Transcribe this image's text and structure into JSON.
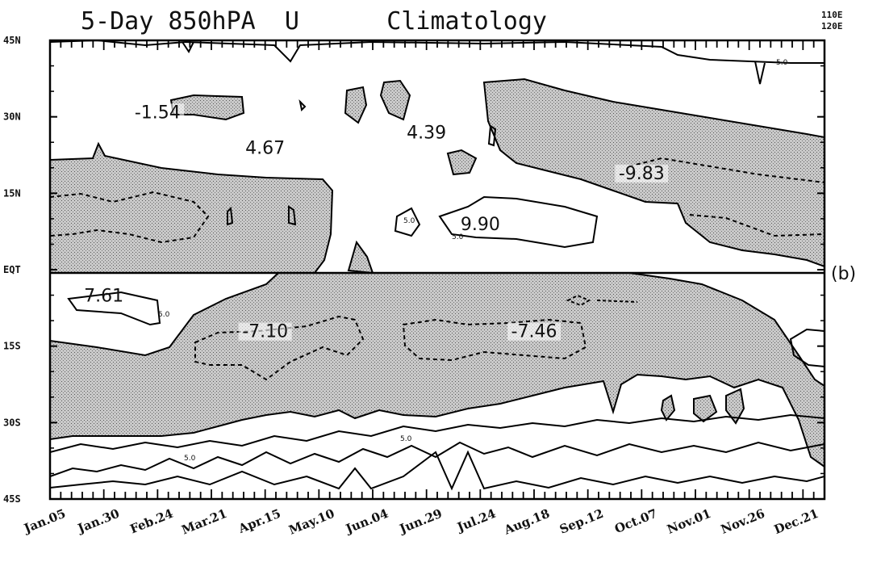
{
  "chart_data": {
    "type": "contour",
    "title": "5-Day 850hPA  U      Climatology",
    "corner_label": [
      "110E",
      "120E"
    ],
    "panel_label": "(b)",
    "y_axis": {
      "ticks": [
        {
          "value": 45,
          "label": "45N"
        },
        {
          "value": 30,
          "label": "30N"
        },
        {
          "value": 15,
          "label": "15N"
        },
        {
          "value": 0,
          "label": "EQT"
        },
        {
          "value": -15,
          "label": "15S"
        },
        {
          "value": -30,
          "label": "30S"
        },
        {
          "value": -45,
          "label": "45S"
        }
      ],
      "range": [
        -45,
        45
      ]
    },
    "x_axis": {
      "ticks": [
        "Jan.05",
        "Jan.30",
        "Feb.24",
        "Mar.21",
        "Apr.15",
        "May.10",
        "Jun.04",
        "Jun.29",
        "Jul.24",
        "Aug.18",
        "Sep.12",
        "Oct.07",
        "Nov.01",
        "Nov.26",
        "Dec.21"
      ],
      "pentads_per_label": 5,
      "pentad_count": 73
    },
    "value_labels": [
      {
        "text": "-1.54",
        "date": "Feb.24",
        "lat": 31
      },
      {
        "text": "4.67",
        "date": "Apr.15",
        "lat": 24
      },
      {
        "text": "4.39",
        "date": "Jun.29",
        "lat": 27
      },
      {
        "text": "-9.83",
        "date": "Oct.07",
        "lat": 19
      },
      {
        "text": "9.90",
        "date": "Jul.24",
        "lat": 9
      },
      {
        "text": "7.61",
        "date": "Jan.30",
        "lat": -5
      },
      {
        "text": "-7.10",
        "date": "Apr.15",
        "lat": -12
      },
      {
        "text": "-7.46",
        "date": "Aug.18",
        "lat": -12
      }
    ],
    "contour_labels": [
      "5.0",
      "5.0",
      "5.0",
      "5.0",
      "5.0",
      "5.0"
    ],
    "shading": "easterly (U < 0) regions stippled grey"
  }
}
